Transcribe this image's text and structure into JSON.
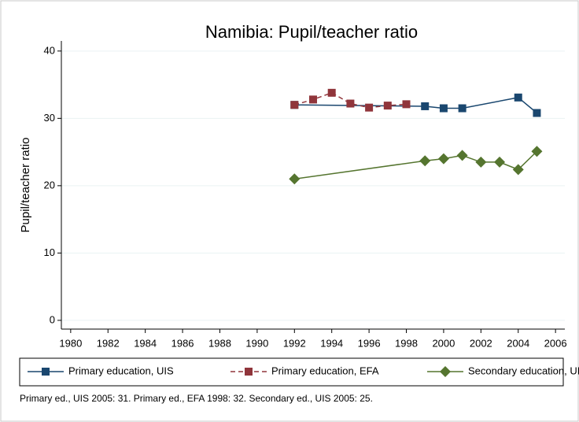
{
  "chart_data": {
    "type": "line",
    "title": "Namibia: Pupil/teacher ratio",
    "y_label": "Pupil/teacher ratio",
    "xlim": [
      1979.5,
      2006.5
    ],
    "xticks": [
      1980,
      1982,
      1984,
      1986,
      1988,
      1990,
      1992,
      1994,
      1996,
      1998,
      2000,
      2002,
      2004,
      2006
    ],
    "ylim": [
      -1.3,
      41.5
    ],
    "yticks": [
      0,
      10,
      20,
      30,
      40
    ],
    "grid": true,
    "series": [
      {
        "name": "Primary education, UIS",
        "color": "#1a476f",
        "marker": "square",
        "line_style": "solid",
        "x": [
          1992,
          1999,
          2000,
          2001,
          2004,
          2005
        ],
        "values": [
          32,
          31.8,
          31.5,
          31.5,
          33.1,
          30.8
        ]
      },
      {
        "name": "Primary education, EFA",
        "color": "#90353b",
        "marker": "square",
        "line_style": "dashed",
        "x": [
          1992,
          1993,
          1994,
          1995,
          1996,
          1997,
          1998
        ],
        "values": [
          32,
          32.8,
          33.8,
          32.2,
          31.6,
          31.9,
          32.1
        ]
      },
      {
        "name": "Secondary education, UIS",
        "color": "#55752f",
        "marker": "diamond",
        "line_style": "solid",
        "x": [
          1992,
          1999,
          2000,
          2001,
          2002,
          2003,
          2004,
          2005
        ],
        "values": [
          21,
          23.7,
          24,
          24.5,
          23.5,
          23.5,
          22.4,
          25.1
        ]
      }
    ],
    "note": "Primary ed., UIS 2005: 31. Primary ed., EFA 1998: 32. Secondary ed., UIS 2005: 25."
  }
}
